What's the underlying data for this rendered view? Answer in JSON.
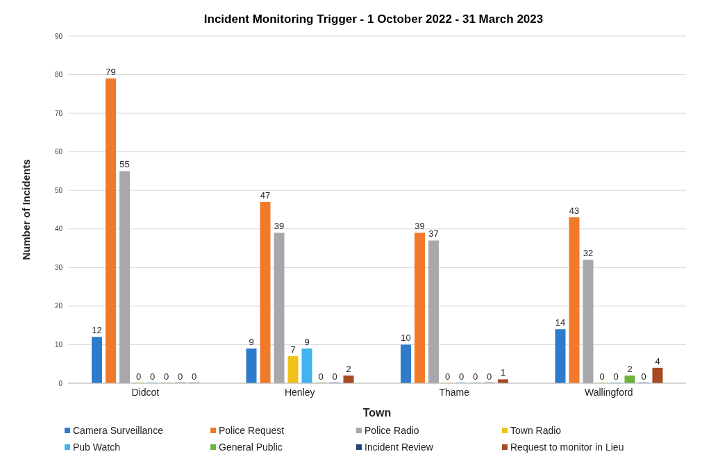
{
  "chart_data": {
    "type": "bar",
    "title": "Incident Monitoring Trigger - 1 October 2022 - 31 March 2023",
    "xlabel": "Town",
    "ylabel": "Number of Incidents",
    "categories": [
      "Didcot",
      "Henley",
      "Thame",
      "Wallingford"
    ],
    "series": [
      {
        "name": "Camera Surveillance",
        "color": "#2f7bcb",
        "values": [
          12,
          9,
          10,
          14
        ]
      },
      {
        "name": "Police Request",
        "color": "#f07a2a",
        "values": [
          79,
          47,
          39,
          43
        ]
      },
      {
        "name": "Police Radio",
        "color": "#a8a8ac",
        "values": [
          55,
          39,
          37,
          32
        ]
      },
      {
        "name": "Town Radio",
        "color": "#eec21a",
        "values": [
          0,
          7,
          0,
          0
        ]
      },
      {
        "name": "Pub Watch",
        "color": "#40b4ec",
        "values": [
          0,
          9,
          0,
          0
        ]
      },
      {
        "name": "General Public",
        "color": "#6cb33e",
        "values": [
          0,
          0,
          0,
          2
        ]
      },
      {
        "name": "Incident Review",
        "color": "#24477e",
        "values": [
          0,
          0,
          0,
          0
        ]
      },
      {
        "name": "Request to monitor in Lieu",
        "color": "#a64a22",
        "values": [
          0,
          2,
          1,
          4
        ]
      }
    ],
    "ylim": [
      0,
      90
    ],
    "yticks": [
      0,
      10,
      20,
      30,
      40,
      50,
      60,
      70,
      80,
      90
    ],
    "grid": "y",
    "legend": "bottom",
    "data_labels": true
  }
}
